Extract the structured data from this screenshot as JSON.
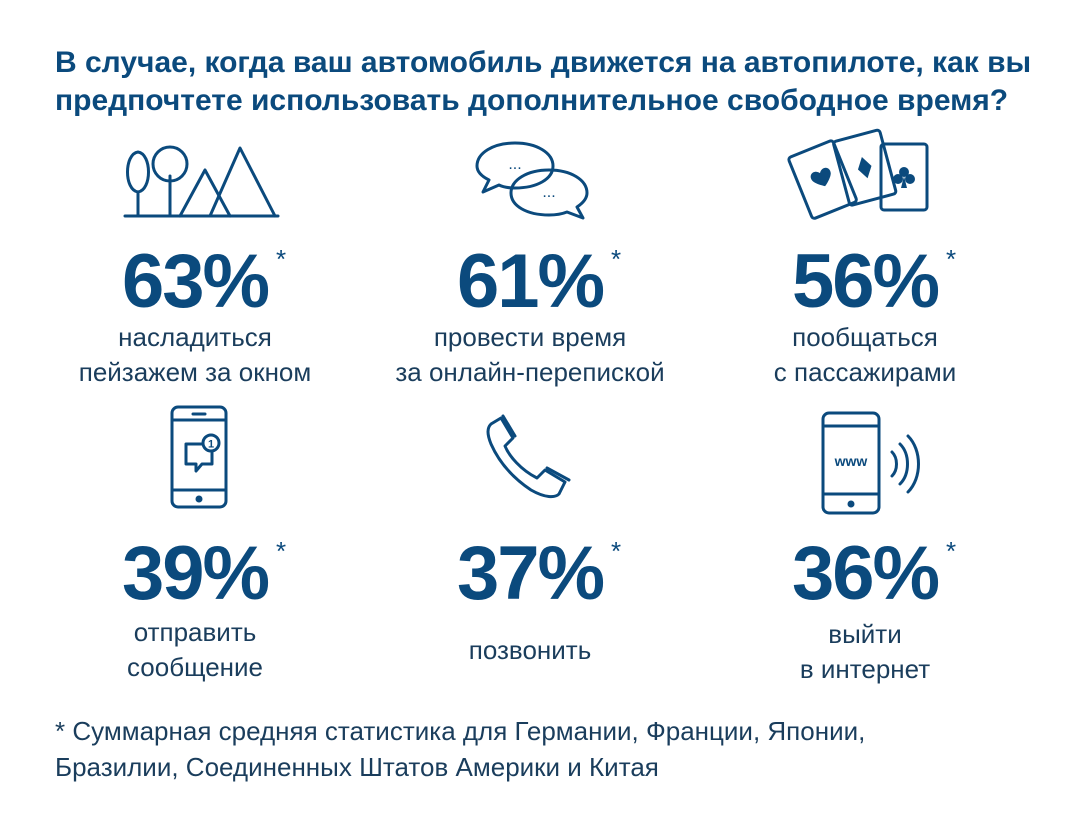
{
  "title": {
    "line1": "В случае, когда ваш автомобиль движется на автопилоте, как вы",
    "line2": "предпочтете использовать дополнительное свободное время?"
  },
  "stats": [
    {
      "value": "63%",
      "star": "*",
      "line1": "насладиться",
      "line2": "пейзажем за окном",
      "icon": "landscape-icon"
    },
    {
      "value": "61%",
      "star": "*",
      "line1": "провести время",
      "line2": "за онлайн-перепиской",
      "icon": "chat-bubbles-icon"
    },
    {
      "value": "56%",
      "star": "*",
      "line1": "пообщаться",
      "line2": "с пассажирами",
      "icon": "playing-cards-icon"
    },
    {
      "value": "39%",
      "star": "*",
      "line1": "отправить",
      "line2": "сообщение",
      "icon": "phone-message-icon"
    },
    {
      "value": "37%",
      "star": "*",
      "line1": "позвонить",
      "icon": "telephone-handset-icon"
    },
    {
      "value": "36%",
      "star": "*",
      "line1": "выйти",
      "line2": "в интернет",
      "icon": "phone-www-icon"
    }
  ],
  "icon_text": {
    "chat_dots_1": "...",
    "chat_dots_2": "...",
    "message_count": "1",
    "www": "www"
  },
  "footnote": {
    "line1": "* Суммарная средняя статистика для Германии, Франции, Японии,",
    "line2": "Бразилии, Соединенных Штатов Америки и Китая"
  },
  "colors": {
    "primary": "#0b4a7d",
    "text": "#1a3d5c",
    "background": "#ffffff"
  }
}
